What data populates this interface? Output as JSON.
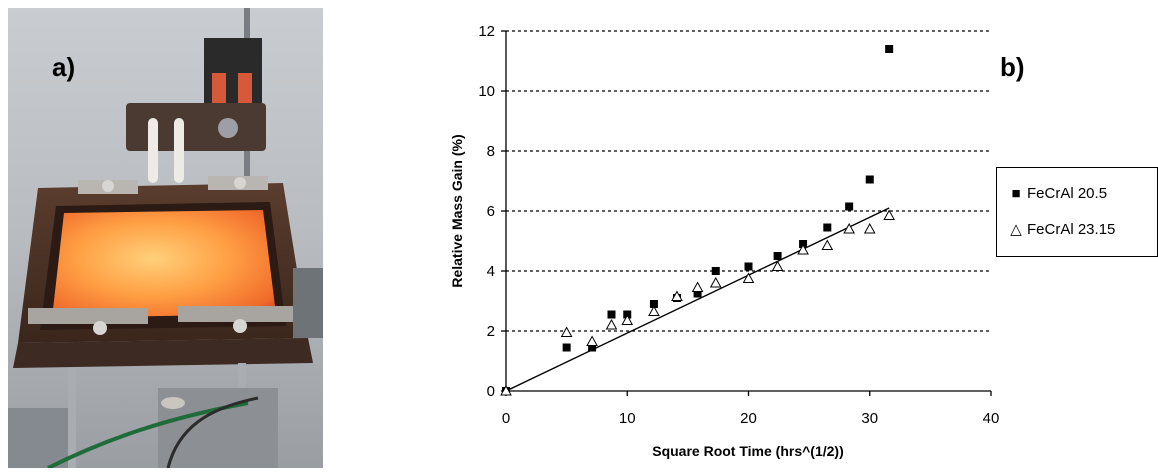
{
  "panel_a": {
    "label": "a)"
  },
  "panel_b": {
    "label": "b)"
  },
  "chart_data": {
    "type": "scatter",
    "xlabel": "Square Root Time (hrs^(1/2))",
    "ylabel": "Relative Mass Gain (%)",
    "xlim": [
      0,
      40
    ],
    "ylim": [
      0,
      12
    ],
    "xticks": [
      "0",
      "10",
      "20",
      "30",
      "40"
    ],
    "yticks": [
      "0",
      "2",
      "4",
      "6",
      "8",
      "10",
      "12"
    ],
    "grid": "horizontal dotted",
    "legend_position": "right",
    "series": [
      {
        "name": "FeCrAl 20.5",
        "marker": "filled-square",
        "color": "#000000",
        "x": [
          0,
          5,
          7.1,
          8.7,
          10,
          12.2,
          14.1,
          15.8,
          17.3,
          20,
          22.4,
          24.5,
          26.5,
          28.3,
          30,
          31.6
        ],
        "y": [
          0,
          1.45,
          1.45,
          2.55,
          2.55,
          2.9,
          3.1,
          3.25,
          4.0,
          4.15,
          4.5,
          4.9,
          5.45,
          6.15,
          7.05,
          11.4
        ]
      },
      {
        "name": "FeCrAl 23.15",
        "marker": "open-triangle",
        "color": "#000000",
        "x": [
          0,
          5,
          7.1,
          8.7,
          10,
          12.2,
          14.1,
          15.8,
          17.3,
          20,
          22.4,
          24.5,
          26.5,
          28.3,
          30,
          31.6
        ],
        "y": [
          0,
          1.95,
          1.65,
          2.2,
          2.35,
          2.65,
          3.15,
          3.45,
          3.6,
          3.75,
          4.15,
          4.7,
          4.85,
          5.4,
          5.4,
          5.85
        ]
      }
    ],
    "trendline": {
      "x": [
        0,
        31.6
      ],
      "y": [
        0,
        6.1
      ]
    }
  }
}
